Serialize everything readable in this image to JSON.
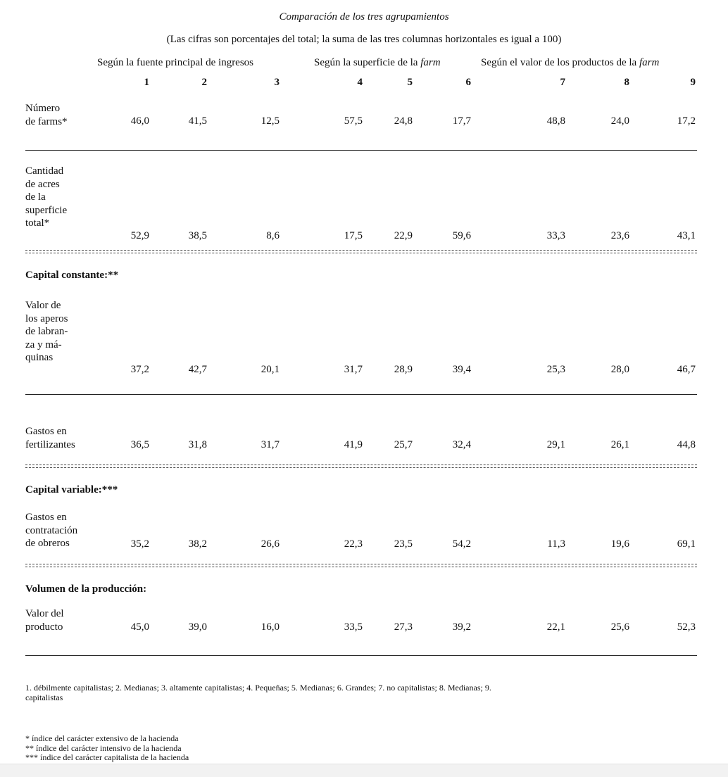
{
  "title": "Comparación de los tres agrupamientos",
  "subtitle": "(Las cifras son porcentajes del total; la suma de las tres columnas horizontales es igual a 100)",
  "groups": {
    "g1": "Según la fuente principal de ingresos",
    "g2_prefix": "Según la superficie de la ",
    "g2_italic": "farm",
    "g3_prefix": "Según el valor de los productos de la ",
    "g3_italic": "farm"
  },
  "columns": [
    "1",
    "2",
    "3",
    "4",
    "5",
    "6",
    "7",
    "8",
    "9"
  ],
  "rows": [
    {
      "label": "Número\nde farms*",
      "values": [
        "46,0",
        "41,5",
        "12,5",
        "57,5",
        "24,8",
        "17,7",
        "48,8",
        "24,0",
        "17,2"
      ]
    },
    {
      "label": "Cantidad\nde acres\nde la\nsuperficie\ntotal*",
      "values": [
        "52,9",
        "38,5",
        "8,6",
        "17,5",
        "22,9",
        "59,6",
        "33,3",
        "23,6",
        "43,1"
      ]
    },
    {
      "label": "Valor de\nlos aperos\nde labran-\nza y má-\nquinas",
      "values": [
        "37,2",
        "42,7",
        "20,1",
        "31,7",
        "28,9",
        "39,4",
        "25,3",
        "28,0",
        "46,7"
      ]
    },
    {
      "label": "Gastos en\nfertilizantes",
      "values": [
        "36,5",
        "31,8",
        "31,7",
        "41,9",
        "25,7",
        "32,4",
        "29,1",
        "26,1",
        "44,8"
      ]
    },
    {
      "label": "Gastos en\ncontratación\nde obreros",
      "values": [
        "35,2",
        "38,2",
        "26,6",
        "22,3",
        "23,5",
        "54,2",
        "11,3",
        "19,6",
        "69,1"
      ]
    },
    {
      "label": "Valor del\nproducto",
      "values": [
        "45,0",
        "39,0",
        "16,0",
        "33,5",
        "27,3",
        "39,2",
        "22,1",
        "25,6",
        "52,3"
      ]
    }
  ],
  "sections": {
    "capital_constante": "Capital constante:**",
    "capital_variable": "Capital variable:***",
    "volumen": "Volumen de la producción:"
  },
  "legend_line1": "1. débilmente capitalistas; 2. Medianas; 3. altamente capitalistas; 4. Pequeñas; 5. Medianas; 6. Grandes; 7. no capitalistas; 8. Medianas; 9.",
  "legend_line2": "capitalistas",
  "footnotes": [
    "* índice del carácter extensivo de la hacienda",
    "** índice del carácter intensivo de la hacienda",
    "*** índice del carácter capitalista de la hacienda"
  ]
}
